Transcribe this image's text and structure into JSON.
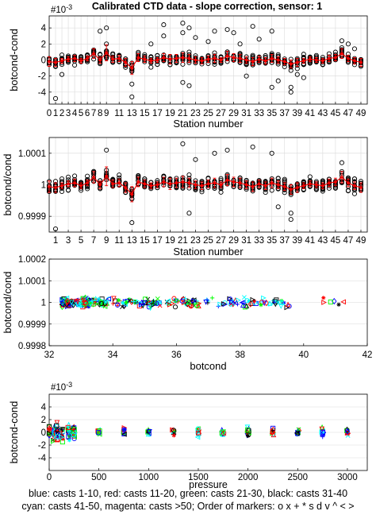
{
  "figure": {
    "title": "Calibrated CTD data - slope correction, sensor: 1",
    "note_line1": "blue: casts 1-10,  red: casts 11-20,  green: casts 21-30,  black: casts 31-40",
    "note_line2": "cyan: casts 41-50, magenta: casts >50; Order of markers: o x + * s d v ^ < >"
  },
  "chart_data": [
    {
      "type": "scatter",
      "xlabel": "Station number",
      "ylabel": "botcond-cond",
      "exponent_label": "#10",
      "exponent_power": "-3",
      "xlim": [
        0,
        50
      ],
      "ylim": [
        -5.5,
        5.5
      ],
      "xticks": [
        0,
        1,
        2,
        3,
        4,
        5,
        6,
        7,
        8,
        9,
        11,
        13,
        15,
        17,
        19,
        21,
        23,
        25,
        27,
        29,
        31,
        33,
        35,
        37,
        39,
        41,
        43,
        45,
        47,
        49
      ],
      "yticks": [
        -4,
        -2,
        0,
        2,
        4
      ],
      "outliers": [
        [
          1,
          -4.8
        ],
        [
          2,
          -1.8
        ],
        [
          7,
          1
        ],
        [
          8,
          3.6
        ],
        [
          9,
          4
        ],
        [
          9,
          2
        ],
        [
          13,
          -3
        ],
        [
          13,
          -4.6
        ],
        [
          16,
          2
        ],
        [
          18,
          4.4
        ],
        [
          18,
          3
        ],
        [
          21,
          4.6
        ],
        [
          21,
          3.4
        ],
        [
          21,
          -2.8
        ],
        [
          22,
          -3.2
        ],
        [
          22,
          4
        ],
        [
          23,
          2.8
        ],
        [
          25,
          2.3
        ],
        [
          26,
          3.6
        ],
        [
          28,
          3.8
        ],
        [
          29,
          3.4
        ],
        [
          30,
          2
        ],
        [
          31,
          -2
        ],
        [
          32,
          4.2
        ],
        [
          33,
          2.6
        ],
        [
          35,
          3.6
        ],
        [
          35,
          -3.4
        ],
        [
          36,
          -2.6
        ],
        [
          38,
          -3.4
        ],
        [
          38,
          -4
        ],
        [
          39,
          -1.8
        ],
        [
          40,
          -2.2
        ],
        [
          46,
          2.4
        ],
        [
          47,
          2
        ],
        [
          48,
          1.4
        ]
      ],
      "means": [
        -0.2,
        -0.3,
        -0.1,
        0.1,
        0.2,
        -0.1,
        0.2,
        0.8,
        0,
        0.9,
        0.1,
        0.2,
        -0.3,
        -1,
        0.3,
        0.1,
        -0.1,
        0,
        0.3,
        0.1,
        0.2,
        0.3,
        0.2,
        0,
        -0.1,
        0.1,
        0.2,
        0,
        0.5,
        0.3,
        0.2,
        0,
        -0.2,
        0.1,
        -0.1,
        0.2,
        0,
        -0.2,
        -0.5,
        -0.3,
        -0.1,
        0.1,
        0,
        -0.1,
        0.2,
        0.3,
        0.8,
        0.2,
        -0.1,
        -0.3
      ],
      "errors": [
        0.6,
        0.5,
        0.3,
        0.3,
        0.4,
        0.3,
        0.3,
        0.6,
        0.4,
        1,
        0.4,
        0.4,
        0.5,
        0.8,
        0.5,
        0.4,
        0.3,
        0.3,
        0.5,
        0.6,
        0.5,
        0.6,
        0.5,
        0.4,
        0.4,
        0.4,
        0.5,
        0.3,
        0.6,
        0.5,
        0.5,
        0.4,
        0.5,
        0.4,
        0.4,
        0.5,
        0.4,
        0.4,
        0.5,
        0.5,
        0.3,
        0.3,
        0.3,
        0.3,
        0.4,
        0.4,
        0.6,
        0.4,
        0.4,
        0.5
      ]
    },
    {
      "type": "scatter",
      "xlabel": "Station number",
      "ylabel": "botcond/cond",
      "xlim": [
        0,
        50
      ],
      "ylim": [
        0.99985,
        1.00015
      ],
      "xticks": [
        1,
        3,
        5,
        7,
        9,
        11,
        13,
        15,
        17,
        19,
        21,
        23,
        25,
        27,
        29,
        31,
        33,
        35,
        37,
        39,
        41,
        43,
        45,
        47,
        49
      ],
      "ytick_values": [
        0.9999,
        1,
        1.0001
      ],
      "ytick_labels": [
        "0.9999",
        "1",
        "1.0001"
      ],
      "outliers": [
        [
          1,
          0.99986
        ],
        [
          9,
          1.00011
        ],
        [
          13,
          0.99988
        ],
        [
          21,
          1.00013
        ],
        [
          22,
          0.99991
        ],
        [
          23,
          1.00008
        ],
        [
          26,
          1.0001
        ],
        [
          28,
          1.00011
        ],
        [
          32,
          1.00012
        ],
        [
          35,
          1.0001
        ],
        [
          36,
          0.99993
        ],
        [
          38,
          0.99991
        ],
        [
          38,
          0.99989
        ],
        [
          46,
          1.00007
        ]
      ],
      "means": [
        -0.2,
        -0.3,
        -0.1,
        0.1,
        0.2,
        -0.1,
        0.2,
        0.8,
        0,
        0.9,
        0.1,
        0.2,
        -0.3,
        -1,
        0.3,
        0.1,
        -0.1,
        0,
        0.3,
        0.1,
        0.2,
        0.3,
        0.2,
        0,
        -0.1,
        0.1,
        0.2,
        0,
        0.5,
        0.3,
        0.2,
        0,
        -0.2,
        0.1,
        -0.1,
        0.2,
        0,
        -0.2,
        -0.5,
        -0.3,
        -0.1,
        0.1,
        0,
        -0.1,
        0.2,
        0.3,
        0.8,
        0.2,
        -0.1,
        -0.3
      ],
      "mean_scale": 3e-05
    },
    {
      "type": "scatter",
      "xlabel": "botcond",
      "ylabel": "botcond/cond",
      "xlim": [
        32,
        42
      ],
      "ylim": [
        0.9998,
        1.0002
      ],
      "xticks": [
        32,
        34,
        36,
        38,
        40,
        42
      ],
      "ytick_values": [
        0.9998,
        0.9999,
        1,
        1.0001,
        1.0002
      ],
      "ytick_labels": [
        "0.9998",
        "0.9999",
        "1",
        "1.0001",
        "1.0002"
      ],
      "clusters": [
        [
          32.4,
          33.9
        ],
        [
          34,
          35.5
        ],
        [
          35.6,
          37.6
        ],
        [
          37.6,
          39.6
        ],
        [
          40.6,
          41.4
        ]
      ]
    },
    {
      "type": "scatter",
      "xlabel": "pressure",
      "ylabel": "botcond-cond",
      "exponent_label": "#10",
      "exponent_power": "-3",
      "xlim": [
        0,
        3200
      ],
      "ylim": [
        -6,
        6
      ],
      "xticks": [
        0,
        500,
        1000,
        1500,
        2000,
        2500,
        3000
      ],
      "yticks": [
        -4,
        -2,
        0,
        2,
        4
      ],
      "clusters": [
        0,
        50,
        80,
        130,
        200,
        250,
        500,
        750,
        1000,
        1250,
        1500,
        1750,
        2000,
        2250,
        2500,
        2750,
        3000
      ]
    }
  ],
  "colors": {
    "blue": "#0000ff",
    "red": "#ff0000",
    "green": "#00ff00",
    "black": "#000000",
    "cyan": "#00ffff",
    "magenta": "#ff00ff",
    "mean_line": "#ff0000",
    "grid": "#d9d9d9"
  },
  "markers": [
    "o",
    "x",
    "+",
    "*",
    "s",
    "d",
    "v",
    "^",
    "<",
    ">"
  ]
}
